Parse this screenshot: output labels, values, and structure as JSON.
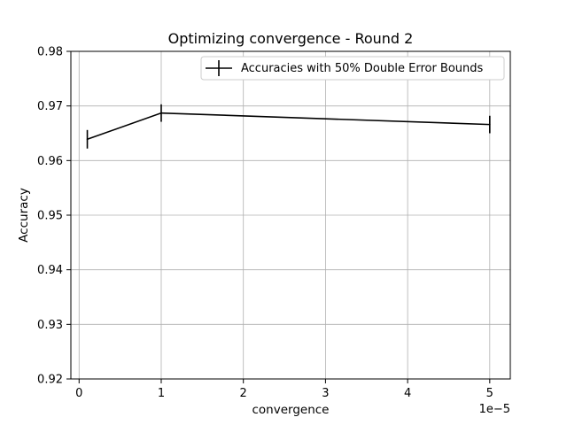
{
  "chart_data": {
    "type": "line",
    "title": "Optimizing convergence - Round 2",
    "xlabel": "convergence",
    "ylabel": "Accuracy",
    "x_offset_label": "1e−5",
    "x_scale": 1e-05,
    "xlim": [
      -0.1,
      5.25
    ],
    "ylim": [
      0.92,
      0.98
    ],
    "x_ticks": [
      0,
      1,
      2,
      3,
      4,
      5
    ],
    "x_tick_labels": [
      "0",
      "1",
      "2",
      "3",
      "4",
      "5"
    ],
    "y_ticks": [
      0.92,
      0.93,
      0.94,
      0.95,
      0.96,
      0.97,
      0.98
    ],
    "y_tick_labels": [
      "0.92",
      "0.93",
      "0.94",
      "0.95",
      "0.96",
      "0.97",
      "0.98"
    ],
    "grid": true,
    "legend_position": "top-right",
    "series": [
      {
        "name": "Accuracies with 50% Double Error Bounds",
        "color": "#000000",
        "x": [
          0.1,
          1,
          5
        ],
        "y": [
          0.9639,
          0.9687,
          0.9666
        ],
        "yerr": [
          0.0017,
          0.0016,
          0.0016
        ]
      }
    ]
  }
}
